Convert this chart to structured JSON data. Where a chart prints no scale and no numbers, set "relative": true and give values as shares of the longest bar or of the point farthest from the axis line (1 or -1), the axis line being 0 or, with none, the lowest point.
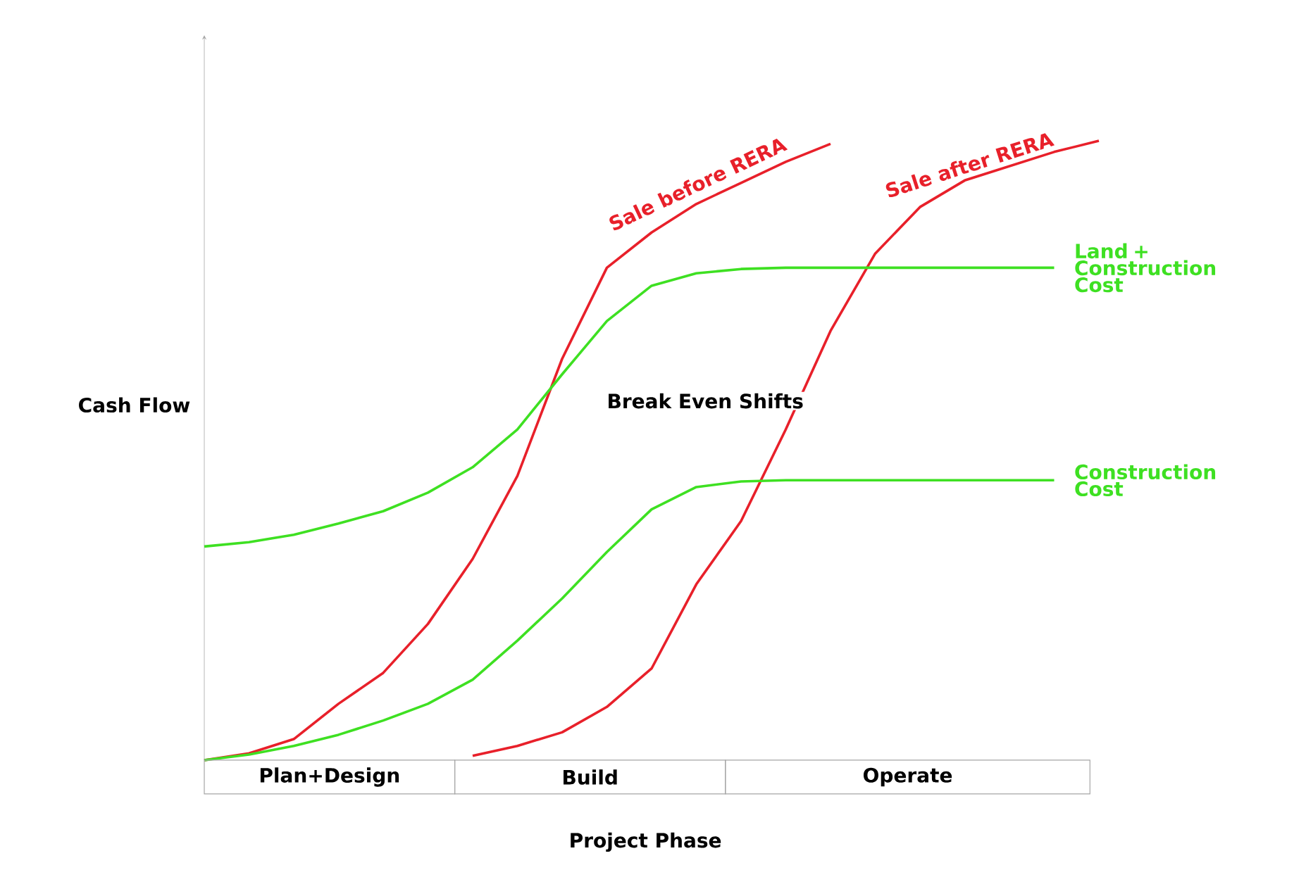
{
  "chart_data": {
    "type": "line",
    "relative": true,
    "xlabel": "Project Phase",
    "ylabel": "Cash Flow",
    "categories": [
      null,
      null,
      null,
      null,
      null,
      null,
      null,
      null,
      null,
      null,
      null,
      null,
      null,
      null,
      null,
      null,
      null,
      null,
      null,
      null,
      null
    ],
    "annotations": [
      "Break Even Shifts",
      "Plan+Design",
      "Build",
      "Operate"
    ],
    "series": [
      {
        "name": "Sale before RERA",
        "color": "#e8202a",
        "values": [
          0,
          0.011,
          0.034,
          0.091,
          0.141,
          0.22,
          0.325,
          0.459,
          0.648,
          0.795,
          0.852,
          0.898,
          0.932,
          0.966,
          0.995,
          null,
          null,
          null,
          null,
          null,
          null
        ]
      },
      {
        "name": "Sale after RERA",
        "color": "#e8202a",
        "values": [
          null,
          null,
          null,
          null,
          null,
          null,
          0.007,
          0.023,
          0.045,
          0.086,
          0.148,
          0.284,
          0.386,
          0.534,
          0.693,
          0.818,
          0.893,
          0.936,
          0.959,
          0.982,
          1
        ]
      },
      {
        "name": "Land + Construction Cost",
        "color": "#3ee022",
        "values": [
          0.345,
          0.352,
          0.364,
          0.382,
          0.402,
          0.432,
          0.473,
          0.534,
          0.623,
          0.709,
          0.766,
          0.786,
          0.793,
          0.795,
          0.795,
          0.795,
          0.795,
          0.795,
          0.795,
          0.795,
          null
        ]
      },
      {
        "name": "Construction Cost",
        "color": "#3ee022",
        "values": [
          0,
          0.009,
          0.023,
          0.041,
          0.064,
          0.091,
          0.13,
          0.193,
          0.261,
          0.336,
          0.405,
          0.441,
          0.45,
          0.452,
          0.452,
          0.452,
          0.452,
          0.452,
          0.452,
          0.452,
          null
        ]
      }
    ]
  }
}
